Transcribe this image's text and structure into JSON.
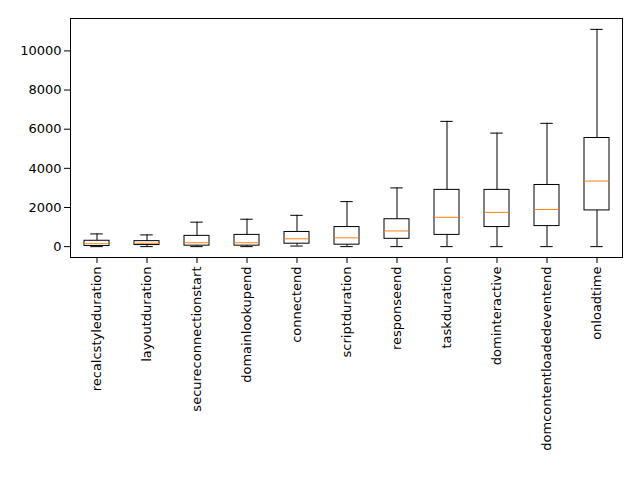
{
  "chart_data": {
    "type": "box",
    "categories": [
      "recalcstyleduration",
      "layoutduration",
      "secureconnectionstart",
      "domainlookupend",
      "connectend",
      "scriptduration",
      "responseend",
      "taskduration",
      "dominteractive",
      "domcontentloadedeventend",
      "onloadtime"
    ],
    "whisker_low": [
      0,
      0,
      0,
      0,
      30,
      0,
      0,
      0,
      0,
      0,
      0
    ],
    "q1": [
      30,
      80,
      50,
      50,
      150,
      100,
      400,
      600,
      1000,
      1050,
      1850
    ],
    "median": [
      150,
      170,
      200,
      200,
      400,
      450,
      800,
      1500,
      1750,
      1900,
      3350
    ],
    "q3": [
      300,
      280,
      550,
      600,
      750,
      1000,
      1400,
      2900,
      2900,
      3150,
      5550
    ],
    "whisker_high": [
      650,
      600,
      1250,
      1400,
      1600,
      2300,
      3000,
      6400,
      5800,
      6300,
      11100
    ],
    "color": "#000000",
    "ylim": [
      -555,
      11655
    ],
    "yticks": [
      0,
      2000,
      4000,
      6000,
      8000,
      10000
    ],
    "grid": false
  }
}
